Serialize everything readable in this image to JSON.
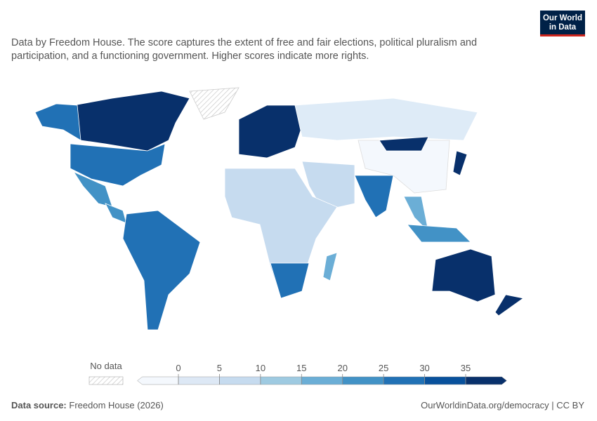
{
  "header": {
    "subtitle": "Data by Freedom House. The score captures the extent of free and fair elections, political pluralism and participation, and a functioning government. Higher scores indicate more rights.",
    "logo_line1": "Our World",
    "logo_line2": "in Data"
  },
  "legend": {
    "no_data_label": "No data",
    "ticks": [
      0,
      5,
      10,
      15,
      20,
      25,
      30,
      35
    ],
    "colors": [
      "#f4f8fd",
      "#dde8f5",
      "#c6dbef",
      "#9ecae1",
      "#6baed6",
      "#4292c6",
      "#2171b5",
      "#08519c",
      "#08306b"
    ]
  },
  "footer": {
    "source_label": "Data source:",
    "source": "Freedom House (2026)",
    "url": "OurWorldinData.org/democracy | CC BY"
  }
}
